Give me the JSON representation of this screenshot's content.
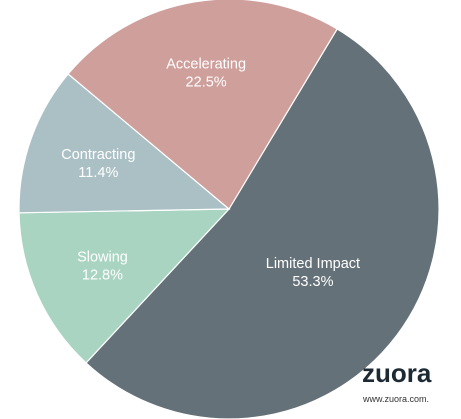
{
  "chart_data": {
    "type": "pie",
    "categories": [
      "Limited Impact",
      "Slowing",
      "Contracting",
      "Accelerating"
    ],
    "values": [
      53.3,
      12.8,
      11.4,
      22.5
    ],
    "value_labels": [
      "53.3%",
      "12.8%",
      "11.4%",
      "22.5%"
    ],
    "colors": [
      "#657178",
      "#a9d4c1",
      "#abc0c5",
      "#cf9f9c"
    ],
    "brand": "zuora",
    "brand_url": "www.zuora.com."
  }
}
